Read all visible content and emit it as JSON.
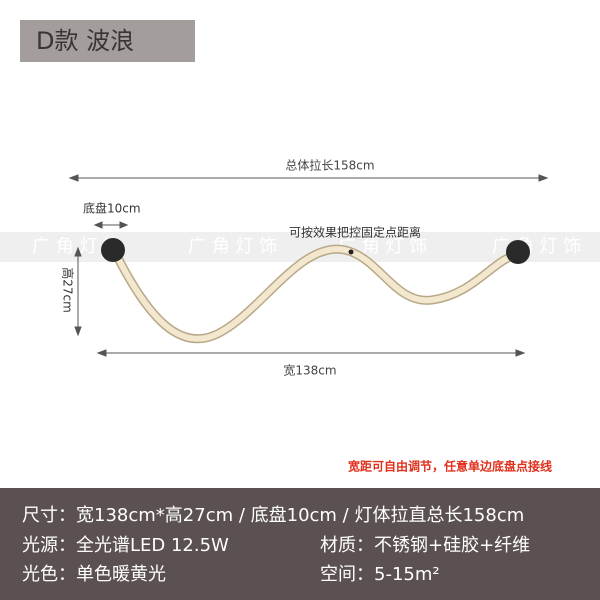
{
  "header": {
    "tag": "D款  波浪"
  },
  "diagram": {
    "total_length": "总体拉长158cm",
    "base": "底盘10cm",
    "note_fix": "可按效果把控固定点距离",
    "height": "高27cm",
    "width": "宽138cm",
    "watermark": "广 角 灯 饰",
    "adjust_note": "宽距可自由调节，任意单边底盘点接线"
  },
  "specs": {
    "size": {
      "label": "尺寸：",
      "value": "宽138cm*高27cm / 底盘10cm / 灯体拉直总长158cm"
    },
    "light": {
      "label": "光源：",
      "value": "全光谱LED  12.5W"
    },
    "material": {
      "label": "材质：",
      "value": "不锈钢+硅胶+纤维"
    },
    "color": {
      "label": "光色：",
      "value": "单色暖黄光"
    },
    "space": {
      "label": "空间：",
      "value": "5-15m²"
    }
  }
}
